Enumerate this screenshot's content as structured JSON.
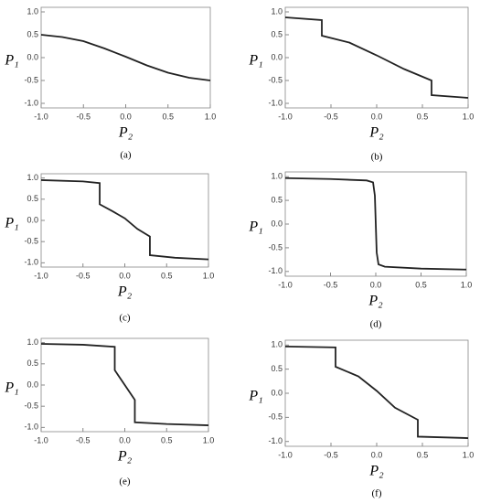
{
  "chart_data": [
    {
      "type": "line",
      "caption": "(a)",
      "xlabel": "P₂",
      "ylabel": "P₁",
      "xlim": [
        -1,
        1
      ],
      "ylim": [
        -1.1,
        1.1
      ],
      "xticks": [
        {
          "value": -1,
          "label": "-1.0"
        },
        {
          "value": -0.5,
          "label": "-0.5"
        },
        {
          "value": 0,
          "label": "0.0"
        },
        {
          "value": 0.5,
          "label": "0.5"
        },
        {
          "value": 1,
          "label": "1.0"
        }
      ],
      "yticks": [
        {
          "value": -1,
          "label": "-1.0"
        },
        {
          "value": -0.5,
          "label": "-0.5"
        },
        {
          "value": 0,
          "label": "0.0"
        },
        {
          "value": 0.5,
          "label": "0.5"
        },
        {
          "value": 1,
          "label": "1.0"
        }
      ],
      "color": "#222",
      "x": [
        -1,
        -0.75,
        -0.5,
        -0.25,
        0,
        0.25,
        0.5,
        0.75,
        1
      ],
      "values": [
        0.5,
        0.45,
        0.36,
        0.2,
        0.02,
        -0.17,
        -0.33,
        -0.44,
        -0.5
      ]
    },
    {
      "type": "line",
      "caption": "(b)",
      "xlabel": "P₂",
      "ylabel": "P₁",
      "xlim": [
        -1,
        1
      ],
      "ylim": [
        -1.1,
        1.1
      ],
      "xticks": [
        {
          "value": -1,
          "label": "-1.0"
        },
        {
          "value": -0.5,
          "label": "-0.5"
        },
        {
          "value": 0,
          "label": "0.0"
        },
        {
          "value": 0.5,
          "label": "0.5"
        },
        {
          "value": 1,
          "label": "1.0"
        }
      ],
      "yticks": [
        {
          "value": -1,
          "label": "-1.0"
        },
        {
          "value": -0.5,
          "label": "-0.5"
        },
        {
          "value": 0,
          "label": "0.0"
        },
        {
          "value": 0.5,
          "label": "0.5"
        },
        {
          "value": 1,
          "label": "1.0"
        }
      ],
      "color": "#222",
      "x": [
        -1,
        -0.6,
        -0.6,
        -0.3,
        0,
        0.3,
        0.6,
        0.6,
        1
      ],
      "values": [
        0.88,
        0.82,
        0.48,
        0.33,
        0.05,
        -0.25,
        -0.5,
        -0.82,
        -0.88
      ]
    },
    {
      "type": "line",
      "caption": "(c)",
      "xlabel": "P₂",
      "ylabel": "P₁",
      "xlim": [
        -1,
        1
      ],
      "ylim": [
        -1.1,
        1.1
      ],
      "xticks": [
        {
          "value": -1,
          "label": "-1.0"
        },
        {
          "value": -0.5,
          "label": "-0.5"
        },
        {
          "value": 0,
          "label": "0.0"
        },
        {
          "value": 0.5,
          "label": "0.5"
        },
        {
          "value": 1,
          "label": "1.0"
        }
      ],
      "yticks": [
        {
          "value": -1,
          "label": "-1.0"
        },
        {
          "value": -0.5,
          "label": "-0.5"
        },
        {
          "value": 0,
          "label": "0.0"
        },
        {
          "value": 0.5,
          "label": "0.5"
        },
        {
          "value": 1,
          "label": "1.0"
        }
      ],
      "color": "#222",
      "x": [
        -1,
        -0.5,
        -0.3,
        -0.3,
        -0.15,
        0,
        0.15,
        0.3,
        0.3,
        0.6,
        1
      ],
      "values": [
        0.95,
        0.92,
        0.88,
        0.38,
        0.22,
        0.05,
        -0.2,
        -0.38,
        -0.82,
        -0.88,
        -0.92
      ]
    },
    {
      "type": "line",
      "caption": "(d)",
      "xlabel": "P₂",
      "ylabel": "P₁",
      "xlim": [
        -1,
        1
      ],
      "ylim": [
        -1.1,
        1.1
      ],
      "xticks": [
        {
          "value": -1,
          "label": "-1.0"
        },
        {
          "value": -0.5,
          "label": "-0.5"
        },
        {
          "value": 0,
          "label": "0.0"
        },
        {
          "value": 0.5,
          "label": "0.5"
        },
        {
          "value": 1,
          "label": "1.0"
        }
      ],
      "yticks": [
        {
          "value": -1,
          "label": "-1.0"
        },
        {
          "value": -0.5,
          "label": "-0.5"
        },
        {
          "value": 0,
          "label": "0.0"
        },
        {
          "value": 0.5,
          "label": "0.5"
        },
        {
          "value": 1,
          "label": "1.0"
        }
      ],
      "color": "#222",
      "x": [
        -1,
        -0.5,
        -0.1,
        -0.03,
        -0.01,
        0,
        0.01,
        0.03,
        0.1,
        0.5,
        1
      ],
      "values": [
        0.97,
        0.95,
        0.92,
        0.88,
        0.6,
        0,
        -0.6,
        -0.85,
        -0.9,
        -0.94,
        -0.96
      ]
    },
    {
      "type": "line",
      "caption": "(e)",
      "xlabel": "P₂",
      "ylabel": "P₁",
      "xlim": [
        -1,
        1
      ],
      "ylim": [
        -1.1,
        1.1
      ],
      "xticks": [
        {
          "value": -1,
          "label": "-1.0"
        },
        {
          "value": -0.5,
          "label": "-0.5"
        },
        {
          "value": 0,
          "label": "0.0"
        },
        {
          "value": 0.5,
          "label": "0.5"
        },
        {
          "value": 1,
          "label": "1.0"
        }
      ],
      "yticks": [
        {
          "value": -1,
          "label": "-1.0"
        },
        {
          "value": -0.5,
          "label": "-0.5"
        },
        {
          "value": 0,
          "label": "0.0"
        },
        {
          "value": 0.5,
          "label": "0.5"
        },
        {
          "value": 1,
          "label": "1.0"
        }
      ],
      "color": "#222",
      "x": [
        -1,
        -0.5,
        -0.12,
        -0.12,
        0,
        0.12,
        0.12,
        0.5,
        1
      ],
      "values": [
        0.97,
        0.95,
        0.9,
        0.35,
        0,
        -0.35,
        -0.88,
        -0.92,
        -0.95
      ]
    },
    {
      "type": "line",
      "caption": "(f)",
      "xlabel": "P₂",
      "ylabel": "P₁",
      "xlim": [
        -1,
        1
      ],
      "ylim": [
        -1.1,
        1.1
      ],
      "xticks": [
        {
          "value": -1,
          "label": "-1.0"
        },
        {
          "value": -0.5,
          "label": "-0.5"
        },
        {
          "value": 0,
          "label": "0.0"
        },
        {
          "value": 0.5,
          "label": "0.5"
        },
        {
          "value": 1,
          "label": "1.0"
        }
      ],
      "yticks": [
        {
          "value": -1,
          "label": "-1.0"
        },
        {
          "value": -0.5,
          "label": "-0.5"
        },
        {
          "value": 0,
          "label": "0.0"
        },
        {
          "value": 0.5,
          "label": "0.5"
        },
        {
          "value": 1,
          "label": "1.0"
        }
      ],
      "color": "#222",
      "x": [
        -1,
        -0.45,
        -0.45,
        -0.2,
        0,
        0.2,
        0.45,
        0.45,
        1
      ],
      "values": [
        0.97,
        0.95,
        0.55,
        0.35,
        0.05,
        -0.3,
        -0.55,
        -0.9,
        -0.93
      ]
    }
  ]
}
